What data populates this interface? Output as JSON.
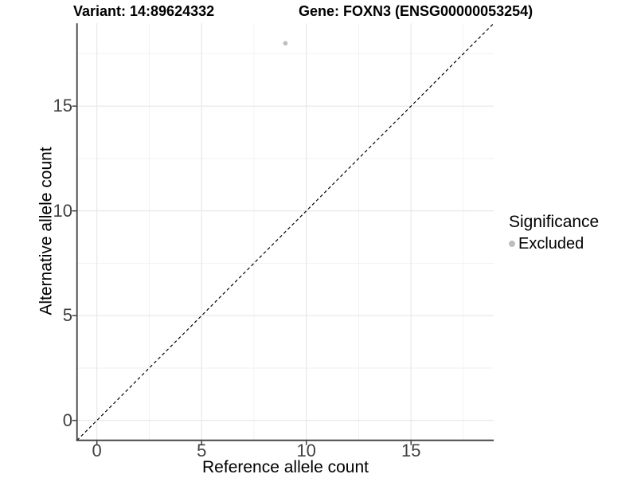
{
  "chart_data": {
    "type": "scatter",
    "titles": {
      "variant": "Variant: 14:89624332",
      "gene": "Gene: FOXN3 (ENSG00000053254)"
    },
    "xlabel": "Reference allele count",
    "ylabel": "Alternative allele count",
    "xlim": [
      -0.95,
      18.95
    ],
    "ylim": [
      -0.95,
      18.95
    ],
    "x_ticks": [
      0,
      5,
      10,
      15
    ],
    "y_ticks": [
      0,
      5,
      10,
      15
    ],
    "x_minor_ticks": [
      2.5,
      7.5,
      12.5,
      17.5
    ],
    "y_minor_ticks": [
      2.5,
      7.5,
      12.5,
      17.5
    ],
    "grid": "major and minor gridlines on white panel",
    "points": [
      {
        "x": 9,
        "y": 18,
        "series": "Excluded"
      }
    ],
    "reference_line": {
      "kind": "identity y = x",
      "from": [
        -0.95,
        -0.95
      ],
      "to": [
        18.95,
        18.95
      ],
      "style": "dashed",
      "color": "#000000"
    },
    "legend": {
      "title": "Significance",
      "position": "right",
      "entries": [
        {
          "label": "Excluded",
          "marker": "circle",
          "color": "#bdbdbd"
        }
      ]
    },
    "colors": {
      "point": "#bdbdbd",
      "grid_major": "#e6e6e6",
      "grid_minor": "#f2f2f2",
      "axis_line": "#3c3c3c",
      "tick_mark": "#3c3c3c",
      "tick_text": "#404040",
      "title_text": "#000000",
      "background": "#ffffff"
    },
    "point_radius_px": 2.8,
    "legend_marker_radius_px": 4
  }
}
